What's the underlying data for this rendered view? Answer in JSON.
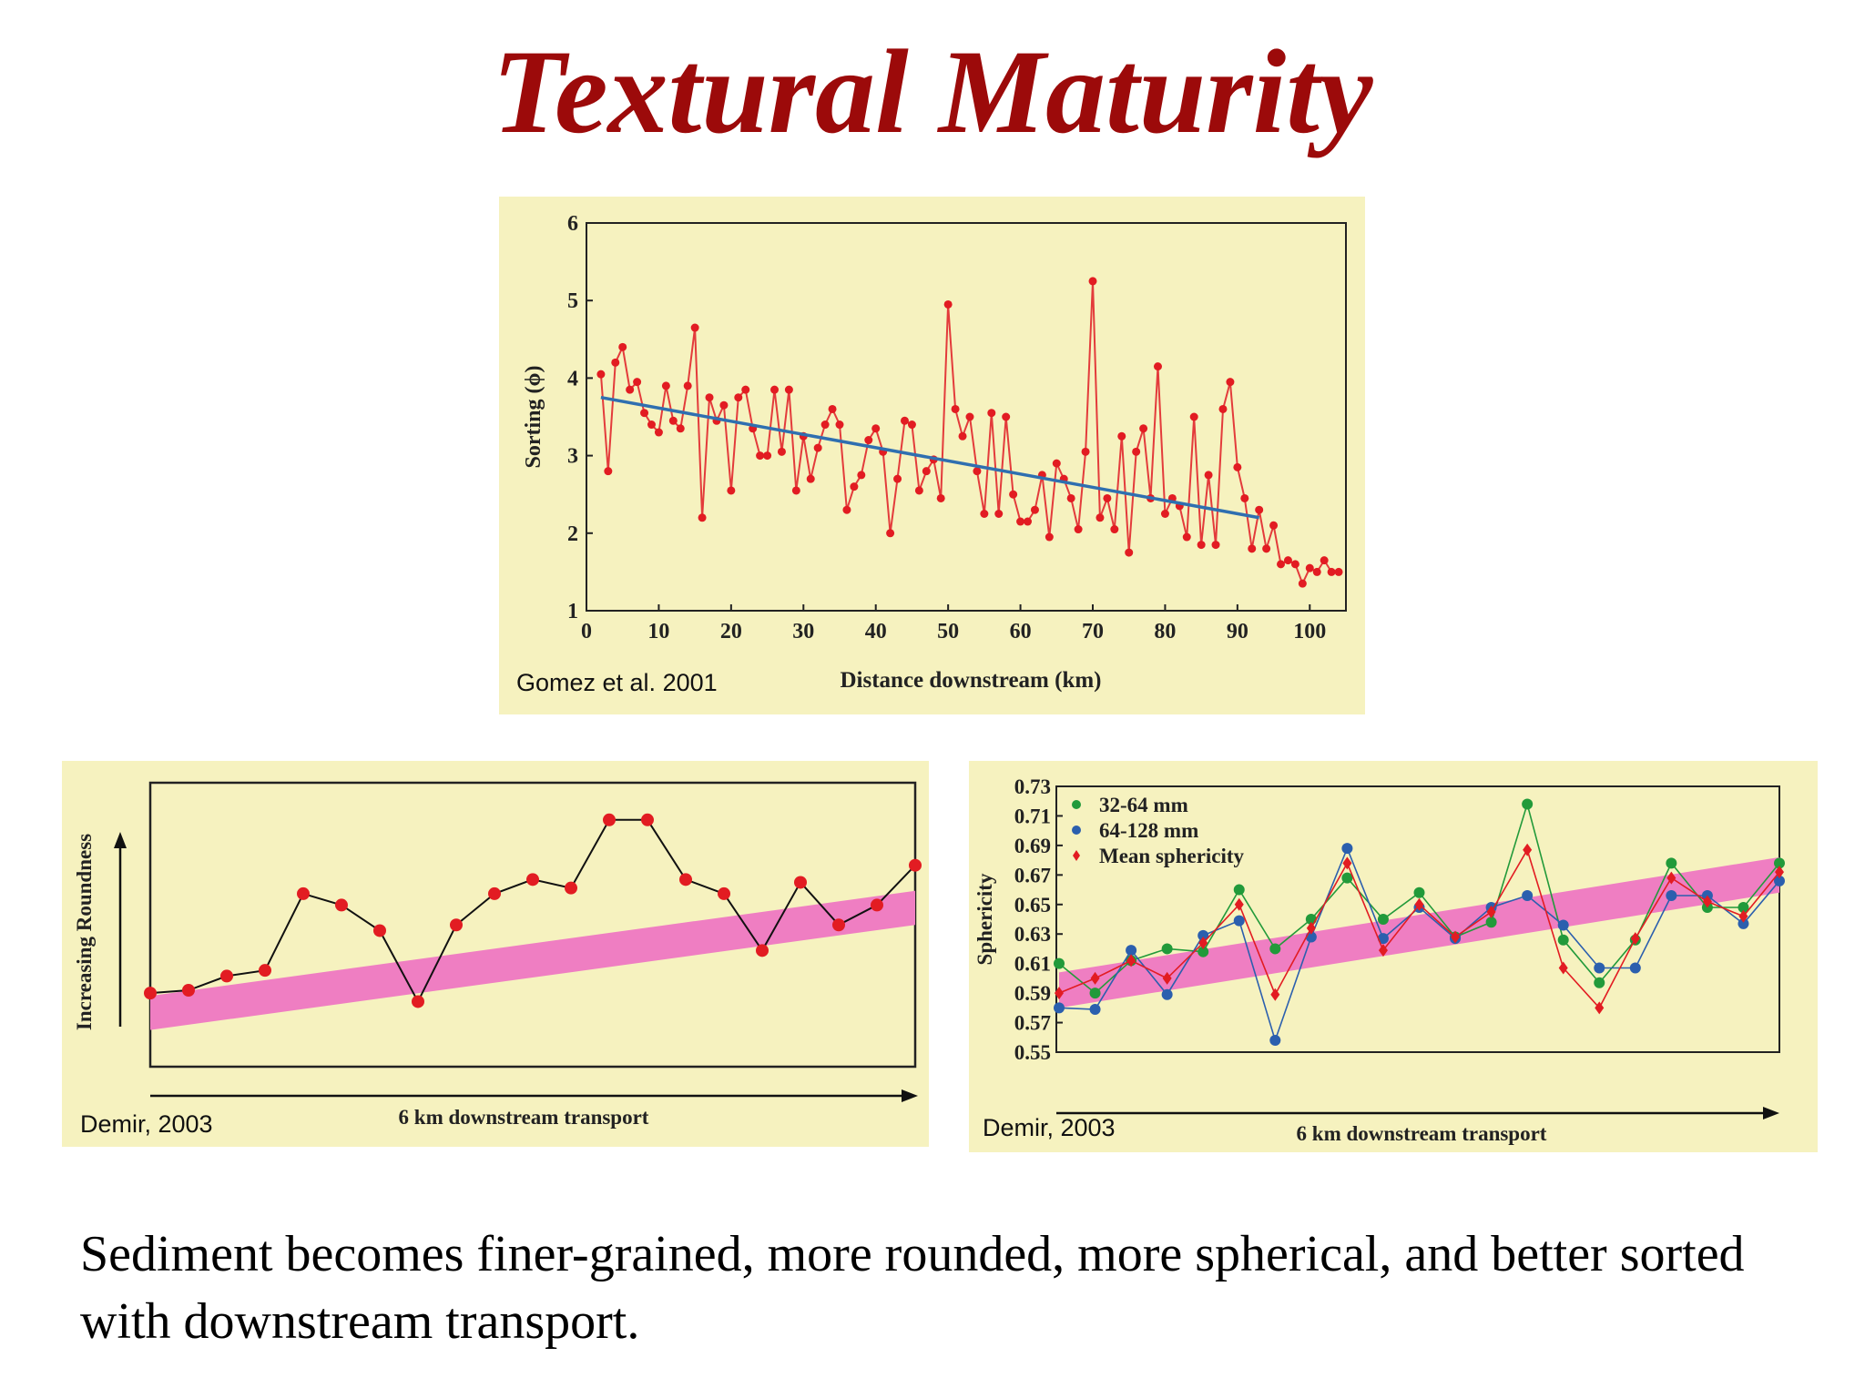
{
  "slide": {
    "title": "Textural Maturity",
    "caption": "Sediment becomes finer-grained, more rounded, more spherical, and better sorted with downstream transport."
  },
  "colors": {
    "title": "#9c0a0a",
    "panel_background": "#f6f2bf",
    "data_red": "#e21c22",
    "line_red": "#e33b3b",
    "trend_blue": "#2f6fb0",
    "trend_band": "#ef7ec2",
    "green": "#229a3a",
    "blue": "#2b5fae"
  },
  "chart_data": [
    {
      "id": "sorting",
      "type": "line",
      "credit": "Gomez et al. 2001",
      "xlabel": "Distance downstream (km)",
      "ylabel": "Sorting (ϕ)",
      "xlim": [
        0,
        105
      ],
      "ylim": [
        1,
        6
      ],
      "xticks": [
        "0",
        "10",
        "20",
        "30",
        "40",
        "50",
        "60",
        "70",
        "80",
        "90",
        "100"
      ],
      "yticks": [
        "1",
        "2",
        "3",
        "4",
        "5",
        "6"
      ],
      "grid": false,
      "series": [
        {
          "marker": "circle",
          "x": [
            2,
            3,
            4,
            5,
            6,
            7,
            8,
            9,
            10,
            11,
            12,
            13,
            14,
            15,
            16,
            17,
            18,
            19,
            20,
            21,
            22,
            23,
            24,
            25,
            26,
            27,
            28,
            29,
            30,
            31,
            32,
            33,
            34,
            35,
            36,
            37,
            38,
            39,
            40,
            41,
            42,
            43,
            44,
            45,
            46,
            47,
            48,
            49,
            50,
            51,
            52,
            53,
            54,
            55,
            56,
            57,
            58,
            59,
            60,
            61,
            62,
            63,
            64,
            65,
            66,
            67,
            68,
            69,
            70,
            71,
            72,
            73,
            74,
            75,
            76,
            77,
            78,
            79,
            80,
            81,
            82,
            83,
            84,
            85,
            86,
            87,
            88,
            89,
            90,
            91,
            92,
            93,
            94,
            95,
            96,
            97,
            98,
            99,
            100,
            101,
            102,
            103,
            104
          ],
          "y": [
            4.05,
            2.8,
            4.2,
            4.4,
            3.85,
            3.95,
            3.55,
            3.4,
            3.3,
            3.9,
            3.45,
            3.35,
            3.9,
            4.65,
            2.2,
            3.75,
            3.45,
            3.65,
            2.55,
            3.75,
            3.85,
            3.35,
            3.0,
            3.0,
            3.85,
            3.05,
            3.85,
            2.55,
            3.25,
            2.7,
            3.1,
            3.4,
            3.6,
            3.4,
            2.3,
            2.6,
            2.75,
            3.2,
            3.35,
            3.05,
            2.0,
            2.7,
            3.45,
            3.4,
            2.55,
            2.8,
            2.95,
            2.45,
            4.95,
            3.6,
            3.25,
            3.5,
            2.8,
            2.25,
            3.55,
            2.25,
            3.5,
            2.5,
            2.15,
            2.15,
            2.3,
            2.75,
            1.95,
            2.9,
            2.7,
            2.45,
            2.05,
            3.05,
            5.25,
            2.2,
            2.45,
            2.05,
            3.25,
            1.75,
            3.05,
            3.35,
            2.45,
            4.15,
            2.25,
            2.45,
            2.35,
            1.95,
            3.5,
            1.85,
            2.75,
            1.85,
            3.6,
            3.95,
            2.85,
            2.45,
            1.8,
            2.3,
            1.8,
            2.1,
            1.6,
            1.65,
            1.6,
            1.35,
            1.55,
            1.5,
            1.65,
            1.5,
            1.5
          ]
        },
        {
          "name": "",
          "kind": "trendline",
          "x": [
            2,
            93
          ],
          "y": [
            3.75,
            2.2
          ]
        }
      ]
    },
    {
      "id": "roundness",
      "type": "line",
      "credit": "Demir, 2003",
      "xlabel": "6 km downstream transport",
      "ylabel": "Increasing Roundness",
      "xlim": [
        0,
        20
      ],
      "ylim": [
        0,
        100
      ],
      "trend_band": {
        "x": [
          0,
          20
        ],
        "center": [
          17,
          54
        ],
        "half_width": 6
      },
      "series": [
        {
          "x": [
            0,
            1,
            2,
            3,
            4,
            5,
            6,
            7,
            8,
            9,
            10,
            11,
            12,
            13,
            14,
            15,
            16,
            17,
            18,
            19,
            20
          ],
          "y": [
            24,
            25,
            30,
            32,
            59,
            55,
            46,
            21,
            48,
            59,
            64,
            61,
            85,
            85,
            64,
            59,
            39,
            63,
            48,
            55,
            69
          ]
        }
      ]
    },
    {
      "id": "sphericity",
      "type": "line",
      "credit": "Demir, 2003",
      "xlabel": "6 km downstream transport",
      "ylabel": "Sphericity",
      "xlim": [
        0,
        20
      ],
      "ylim": [
        0.55,
        0.73
      ],
      "yticks": [
        "0.73",
        "0.71",
        "0.69",
        "0.67",
        "0.65",
        "0.63",
        "0.61",
        "0.59",
        "0.57",
        "0.55"
      ],
      "legend": "top-left",
      "trend_band": {
        "x": [
          0,
          20
        ],
        "center": [
          0.592,
          0.67
        ],
        "half_width": 0.012
      },
      "series": [
        {
          "name": "32-64 mm",
          "marker": "circle",
          "color": "#229a3a",
          "x": [
            0,
            1,
            2,
            3,
            4,
            5,
            6,
            7,
            8,
            9,
            10,
            11,
            12,
            13,
            14,
            15,
            16,
            17,
            18,
            19,
            20
          ],
          "y": [
            0.61,
            0.59,
            0.612,
            0.62,
            0.618,
            0.66,
            0.62,
            0.64,
            0.668,
            0.64,
            0.658,
            0.628,
            0.638,
            0.718,
            0.626,
            0.597,
            0.626,
            0.678,
            0.648,
            0.648,
            0.678
          ]
        },
        {
          "name": "64-128 mm",
          "marker": "circle",
          "color": "#2b5fae",
          "x": [
            0,
            1,
            2,
            3,
            4,
            5,
            6,
            7,
            8,
            9,
            10,
            11,
            12,
            13,
            14,
            15,
            16,
            17,
            18,
            19,
            20
          ],
          "y": [
            0.58,
            0.579,
            0.619,
            0.589,
            0.629,
            0.639,
            0.558,
            0.628,
            0.688,
            0.627,
            0.648,
            0.627,
            0.648,
            0.656,
            0.636,
            0.607,
            0.607,
            0.656,
            0.656,
            0.637,
            0.666
          ]
        },
        {
          "name": "Mean sphericity",
          "marker": "diamond",
          "color": "#e21c22",
          "x": [
            0,
            1,
            2,
            3,
            4,
            5,
            6,
            7,
            8,
            9,
            10,
            11,
            12,
            13,
            14,
            15,
            16,
            17,
            18,
            19,
            20
          ],
          "y": [
            0.59,
            0.6,
            0.612,
            0.6,
            0.624,
            0.65,
            0.589,
            0.634,
            0.678,
            0.619,
            0.65,
            0.628,
            0.645,
            0.687,
            0.607,
            0.58,
            0.627,
            0.668,
            0.652,
            0.642,
            0.672
          ]
        }
      ]
    }
  ]
}
